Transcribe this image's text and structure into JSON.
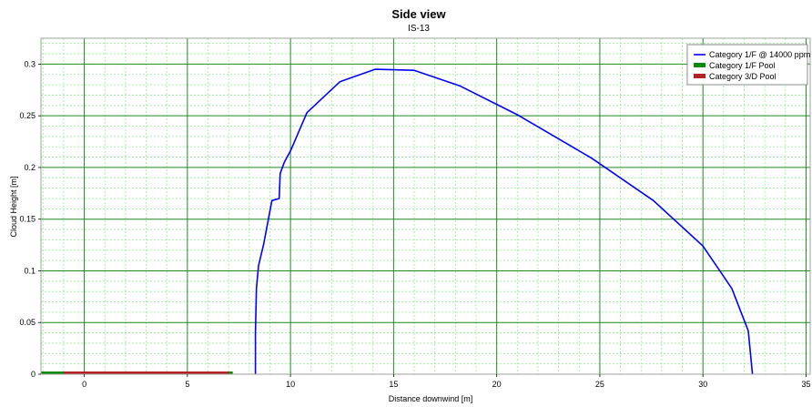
{
  "chart_data": {
    "type": "line",
    "title": "Side view",
    "subtitle": "IS-13",
    "xlabel": "Distance downwind [m]",
    "ylabel": "Cloud Height [m]",
    "xlim": [
      -2.1,
      35.2
    ],
    "ylim": [
      0,
      0.325
    ],
    "x_ticks": [
      0,
      5,
      10,
      15,
      20,
      25,
      30,
      35
    ],
    "y_ticks": [
      0,
      0.05,
      0.1,
      0.15,
      0.2,
      0.25,
      0.3
    ],
    "x_tick_labels": [
      "0",
      "5",
      "10",
      "15",
      "20",
      "25",
      "30",
      "35"
    ],
    "y_tick_labels": [
      "0",
      "0.05",
      "0.1",
      "0.15",
      "0.2",
      "0.25",
      "0.3"
    ],
    "grid": true,
    "legend_position": "top-right",
    "series": [
      {
        "name": "Category 1/F @ 14000 ppm",
        "kind": "line",
        "color": "#0000ff",
        "x": [
          8.3,
          8.3,
          8.35,
          8.45,
          8.7,
          9.1,
          9.45,
          9.5,
          9.7,
          10.0,
          10.8,
          12.4,
          14.1,
          16.0,
          18.2,
          21.0,
          24.6,
          27.6,
          30.0,
          31.4,
          32.2,
          32.4
        ],
        "y": [
          0,
          0.04,
          0.083,
          0.105,
          0.126,
          0.168,
          0.17,
          0.194,
          0.205,
          0.216,
          0.253,
          0.283,
          0.295,
          0.294,
          0.279,
          0.251,
          0.209,
          0.168,
          0.124,
          0.083,
          0.042,
          0
        ]
      },
      {
        "name": "Category 1/F Pool",
        "kind": "pool",
        "color": "#0a8a0a",
        "x_range": [
          -2.1,
          7.2
        ]
      },
      {
        "name": "Category 3/D Pool",
        "kind": "pool",
        "color": "#b22222",
        "x_range": [
          -1.0,
          7.0
        ]
      }
    ]
  }
}
